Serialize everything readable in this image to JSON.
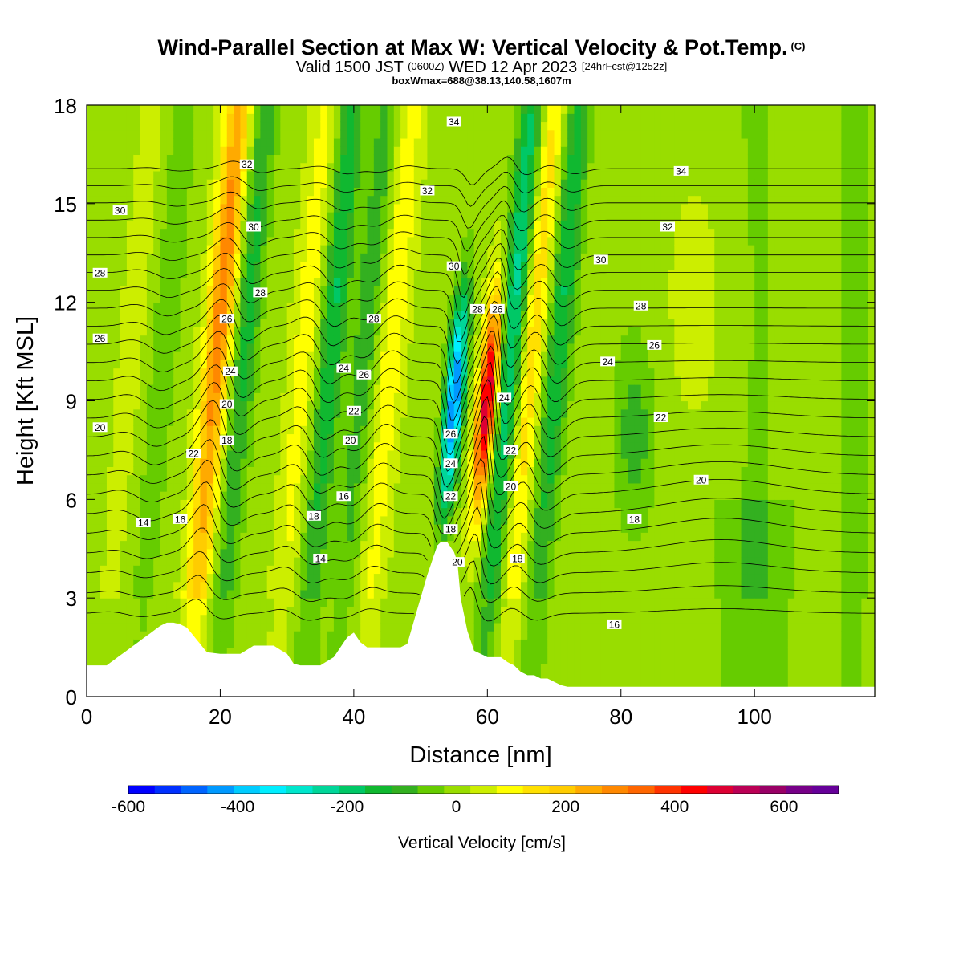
{
  "header": {
    "title": "Wind-Parallel Section at Max W: Vertical Velocity & Pot.Temp.",
    "title_tag": "(C)",
    "valid_prefix": "Valid 1500 JST",
    "valid_z": "(0600Z)",
    "valid_date": "WED 12 Apr 2023",
    "forecast_tag": "[24hrFcst@1252z]",
    "box_info": "boxWmax=688@38.13,140.58,1607m"
  },
  "colorbar": {
    "label": "Vertical Velocity [cm/s]",
    "ticks": [
      "-600",
      "-400",
      "-200",
      "0",
      "200",
      "400",
      "600"
    ],
    "colors": [
      "#0000ff",
      "#0030ff",
      "#0064ff",
      "#0099ff",
      "#00ccff",
      "#00eeff",
      "#00e6cc",
      "#00d699",
      "#00c866",
      "#10b830",
      "#33b020",
      "#66cc00",
      "#99dd00",
      "#ccee00",
      "#ffff00",
      "#ffe000",
      "#ffcc00",
      "#ffaa00",
      "#ff8800",
      "#ff6600",
      "#ff3300",
      "#ff0000",
      "#dd0033",
      "#bb0055",
      "#990066",
      "#770088",
      "#660099"
    ]
  },
  "chart_data": {
    "type": "heatmap",
    "xlabel": "Distance [nm]",
    "ylabel": "Height [Kft MSL]",
    "xlim": [
      0,
      118
    ],
    "ylim": [
      0,
      18
    ],
    "x_ticks": [
      "0",
      "20",
      "40",
      "60",
      "80",
      "100"
    ],
    "y_ticks": [
      "0",
      "3",
      "6",
      "9",
      "12",
      "15",
      "18"
    ],
    "fill_variable": "Vertical Velocity [cm/s]",
    "contour_variable": "Potential Temperature [C]",
    "contour_interval": 1,
    "vertical_velocity_bands": [
      {
        "x": 6,
        "peak": 40
      },
      {
        "x": 11,
        "peak": -80
      },
      {
        "x": 19,
        "peak": 300
      },
      {
        "x": 23,
        "peak": -150
      },
      {
        "x": 32,
        "peak": 100
      },
      {
        "x": 36,
        "peak": -180
      },
      {
        "x": 41,
        "peak": -120
      },
      {
        "x": 45,
        "peak": 110
      },
      {
        "x": 55,
        "peak": -480
      },
      {
        "x": 60,
        "peak": 520
      },
      {
        "x": 63,
        "peak": -250
      },
      {
        "x": 66,
        "peak": 170
      },
      {
        "x": 70,
        "peak": -180
      }
    ],
    "terrain_x": [
      0,
      3,
      5,
      7,
      9,
      10,
      11,
      12,
      13,
      14,
      15,
      16,
      17,
      18,
      20,
      23,
      25,
      28,
      30,
      31,
      32,
      35,
      37,
      38,
      39,
      40,
      41,
      42,
      43,
      44,
      45,
      46,
      47,
      48,
      49,
      50,
      51,
      52,
      52.5,
      53,
      54,
      55,
      55.7,
      56,
      57,
      58,
      59,
      60,
      61,
      62,
      63,
      64,
      65,
      66,
      67,
      68,
      69,
      70,
      71,
      72,
      80,
      90,
      100,
      110,
      118
    ],
    "terrain_h": [
      0.95,
      0.95,
      1.25,
      1.55,
      1.85,
      2.0,
      2.15,
      2.25,
      2.25,
      2.2,
      2.1,
      1.85,
      1.6,
      1.35,
      1.3,
      1.3,
      1.55,
      1.55,
      1.3,
      1.0,
      0.95,
      0.95,
      1.2,
      1.5,
      1.8,
      1.95,
      1.65,
      1.5,
      1.5,
      1.5,
      1.5,
      1.5,
      1.5,
      1.6,
      2.3,
      3.0,
      3.7,
      4.3,
      4.6,
      4.7,
      4.7,
      4.4,
      4.0,
      3.0,
      2.0,
      1.4,
      1.3,
      1.2,
      1.2,
      1.2,
      1.05,
      0.95,
      0.75,
      0.65,
      0.65,
      0.55,
      0.55,
      0.45,
      0.35,
      0.3,
      0.3,
      0.3,
      0.3,
      0.3,
      0.3
    ],
    "contour_labels": [
      {
        "text": "34",
        "x": 55,
        "y": 17.5
      },
      {
        "text": "32",
        "x": 24,
        "y": 16.2
      },
      {
        "text": "32",
        "x": 51,
        "y": 15.4
      },
      {
        "text": "34",
        "x": 89,
        "y": 16.0
      },
      {
        "text": "30",
        "x": 5,
        "y": 14.8
      },
      {
        "text": "30",
        "x": 25,
        "y": 14.3
      },
      {
        "text": "32",
        "x": 87,
        "y": 14.3
      },
      {
        "text": "30",
        "x": 55,
        "y": 13.1
      },
      {
        "text": "30",
        "x": 77,
        "y": 13.3
      },
      {
        "text": "28",
        "x": 2,
        "y": 12.9
      },
      {
        "text": "28",
        "x": 26,
        "y": 12.3
      },
      {
        "text": "28",
        "x": 58.5,
        "y": 11.8
      },
      {
        "text": "26",
        "x": 61.5,
        "y": 11.8
      },
      {
        "text": "28",
        "x": 83,
        "y": 11.9
      },
      {
        "text": "26",
        "x": 21,
        "y": 11.5
      },
      {
        "text": "28",
        "x": 43,
        "y": 11.5
      },
      {
        "text": "26",
        "x": 2,
        "y": 10.9
      },
      {
        "text": "26",
        "x": 85,
        "y": 10.7
      },
      {
        "text": "24",
        "x": 21.5,
        "y": 9.9
      },
      {
        "text": "24",
        "x": 38.5,
        "y": 10.0
      },
      {
        "text": "26",
        "x": 41.5,
        "y": 9.8
      },
      {
        "text": "24",
        "x": 78,
        "y": 10.2
      },
      {
        "text": "24",
        "x": 62.5,
        "y": 9.1
      },
      {
        "text": "20",
        "x": 21,
        "y": 8.9
      },
      {
        "text": "22",
        "x": 40,
        "y": 8.7
      },
      {
        "text": "22",
        "x": 86,
        "y": 8.5
      },
      {
        "text": "20",
        "x": 2,
        "y": 8.2
      },
      {
        "text": "18",
        "x": 21,
        "y": 7.8
      },
      {
        "text": "20",
        "x": 39.5,
        "y": 7.8
      },
      {
        "text": "26",
        "x": 54.5,
        "y": 8.0
      },
      {
        "text": "22",
        "x": 16,
        "y": 7.4
      },
      {
        "text": "22",
        "x": 63.5,
        "y": 7.5
      },
      {
        "text": "24",
        "x": 54.5,
        "y": 7.1
      },
      {
        "text": "20",
        "x": 63.5,
        "y": 6.4
      },
      {
        "text": "20",
        "x": 92,
        "y": 6.6
      },
      {
        "text": "22",
        "x": 54.5,
        "y": 6.1
      },
      {
        "text": "16",
        "x": 38.5,
        "y": 6.1
      },
      {
        "text": "18",
        "x": 34,
        "y": 5.5
      },
      {
        "text": "14",
        "x": 8.5,
        "y": 5.3
      },
      {
        "text": "16",
        "x": 14,
        "y": 5.4
      },
      {
        "text": "18",
        "x": 82,
        "y": 5.4
      },
      {
        "text": "18",
        "x": 54.5,
        "y": 5.1
      },
      {
        "text": "20",
        "x": 55.5,
        "y": 4.1
      },
      {
        "text": "18",
        "x": 64.5,
        "y": 4.2
      },
      {
        "text": "14",
        "x": 35,
        "y": 4.2
      },
      {
        "text": "16",
        "x": 79,
        "y": 2.2
      }
    ]
  }
}
